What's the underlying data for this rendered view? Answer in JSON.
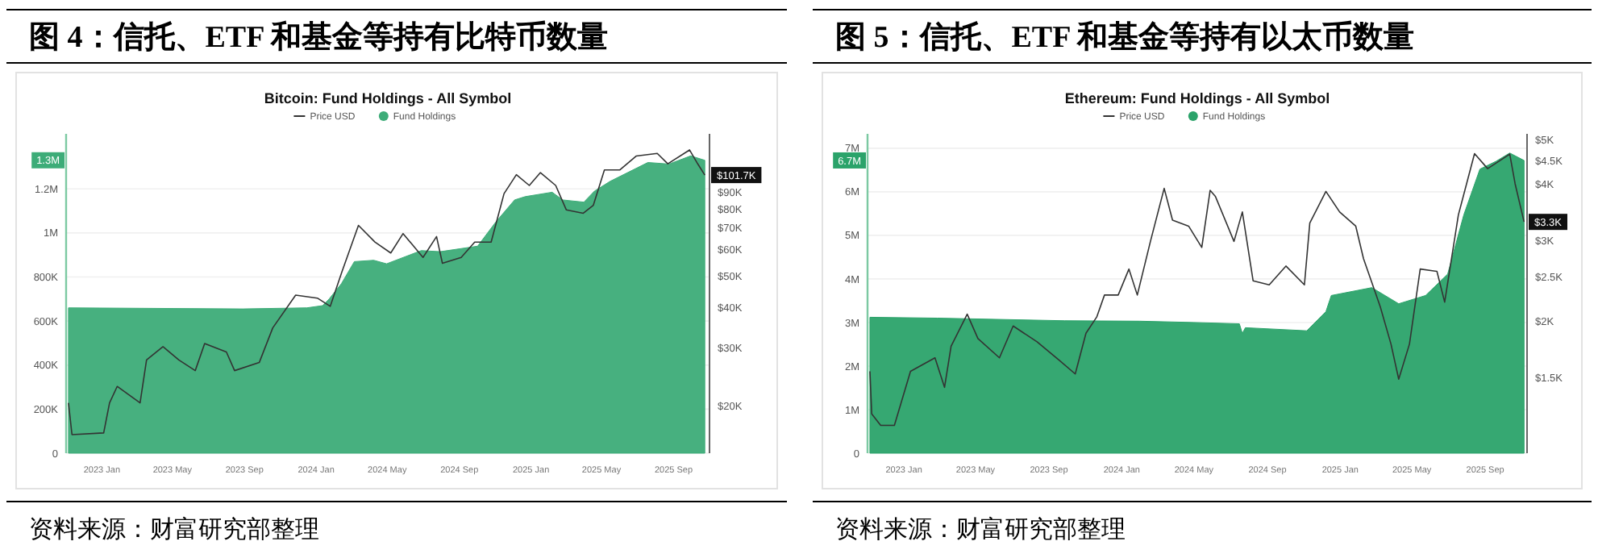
{
  "chart_data": [
    {
      "type": "area",
      "title": "图 4：信托、ETF 和基金等持有比特币数量",
      "subtitle": "Bitcoin: Fund Holdings - All Symbol",
      "legend": "top",
      "grid": "y",
      "log": "y2",
      "xlim": [
        "2022-11-01",
        "2025-11-01"
      ],
      "xticks": [
        {
          "value": "2023-01",
          "label": "2023 Jan"
        },
        {
          "value": "2023-05",
          "label": "2023 May"
        },
        {
          "value": "2023-09",
          "label": "2023 Sep"
        },
        {
          "value": "2024-01",
          "label": "2024 Jan"
        },
        {
          "value": "2024-05",
          "label": "2024 May"
        },
        {
          "value": "2024-09",
          "label": "2024 Sep"
        },
        {
          "value": "2025-01",
          "label": "2025 Jan"
        },
        {
          "value": "2025-05",
          "label": "2025 May"
        },
        {
          "value": "2025-09",
          "label": "2025 Sep"
        }
      ],
      "ylim": [
        0,
        1450000
      ],
      "yticks": [
        0,
        {
          "value": 200000,
          "label": "200K"
        },
        {
          "value": 400000,
          "label": "400K"
        },
        {
          "value": 600000,
          "label": "600K"
        },
        {
          "value": 800000,
          "label": "800K"
        },
        {
          "value": 1000000,
          "label": "1M"
        },
        {
          "value": 1200000,
          "label": "1.2M"
        }
      ],
      "y2lim": [
        14300,
        136000
      ],
      "y2ticks": [
        {
          "value": 20000,
          "label": "$20K"
        },
        {
          "value": 30000,
          "label": "$30K"
        },
        {
          "value": 40000,
          "label": "$40K"
        },
        {
          "value": 50000,
          "label": "$50K"
        },
        {
          "value": 60000,
          "label": "$60K"
        },
        {
          "value": 70000,
          "label": "$70K"
        },
        {
          "value": 80000,
          "label": "$80K"
        },
        {
          "value": 90000,
          "label": "$90K"
        }
      ],
      "series": [
        {
          "name": "Price USD",
          "type": "line",
          "axis": "y2",
          "color": "#333333",
          "x": [
            "2022-11-05",
            "2022-11-11",
            "2023-01-04",
            "2023-01-14",
            "2023-01-27",
            "2023-03-07",
            "2023-03-18",
            "2023-04-15",
            "2023-05-12",
            "2023-06-09",
            "2023-06-25",
            "2023-08-01",
            "2023-08-15",
            "2023-09-26",
            "2023-10-19",
            "2023-11-27",
            "2024-01-03",
            "2024-01-25",
            "2024-02-14",
            "2024-03-13",
            "2024-04-10",
            "2024-05-07",
            "2024-05-28",
            "2024-07-01",
            "2024-07-24",
            "2024-08-03",
            "2024-09-04",
            "2024-09-27",
            "2024-10-25",
            "2024-11-16",
            "2024-12-07",
            "2024-12-29",
            "2025-01-17",
            "2025-02-12",
            "2025-03-02",
            "2025-03-31",
            "2025-04-17",
            "2025-05-06",
            "2025-06-01",
            "2025-06-29",
            "2025-08-04",
            "2025-08-22",
            "2025-09-28",
            "2025-10-12",
            "2025-10-24"
          ],
          "values": [
            20400,
            16300,
            16500,
            20400,
            22900,
            20400,
            27600,
            30300,
            27600,
            25600,
            31000,
            29200,
            25600,
            27100,
            34600,
            43600,
            42700,
            40300,
            51500,
            71300,
            63400,
            58700,
            67300,
            56900,
            65900,
            54600,
            56900,
            63400,
            63400,
            89200,
            102000,
            94500,
            103500,
            94500,
            79600,
            77700,
            82100,
            105400,
            105400,
            116300,
            118500,
            110100,
            121400,
            110000,
            101700
          ]
        },
        {
          "name": "Fund Holdings",
          "color": "#3dac78",
          "x": [
            "2022-11-05",
            "2023-08-29",
            "2023-12-16",
            "2024-01-12",
            "2024-01-23",
            "2024-02-13",
            "2024-03-06",
            "2024-04-08",
            "2024-04-30",
            "2024-06-28",
            "2024-07-30",
            "2024-10-02",
            "2024-11-02",
            "2024-12-04",
            "2024-12-22",
            "2025-02-06",
            "2025-02-24",
            "2025-04-01",
            "2025-04-19",
            "2025-05-16",
            "2025-07-01",
            "2025-07-19",
            "2025-08-24",
            "2025-09-30",
            "2025-10-24"
          ],
          "values": [
            660000,
            655000,
            660000,
            670000,
            700000,
            770000,
            870000,
            876000,
            860000,
            920000,
            915000,
            940000,
            1050000,
            1150000,
            1165000,
            1185000,
            1150000,
            1140000,
            1190000,
            1235000,
            1296000,
            1320000,
            1313000,
            1350000,
            1330000
          ]
        }
      ],
      "annotations": [
        "1.3M",
        "$101.7K",
        "资料来源：财富研究部整理"
      ]
    },
    {
      "type": "area",
      "title": "图 5：信托、ETF 和基金等持有以太币数量",
      "subtitle": "Ethereum: Fund Holdings - All Symbol",
      "legend": "top",
      "grid": "y",
      "log": "y2",
      "xlim": [
        "2022-11-01",
        "2025-11-10"
      ],
      "xticks": [
        {
          "value": "2023-01",
          "label": "2023 Jan"
        },
        {
          "value": "2023-05",
          "label": "2023 May"
        },
        {
          "value": "2023-09",
          "label": "2023 Sep"
        },
        {
          "value": "2024-01",
          "label": "2024 Jan"
        },
        {
          "value": "2024-05",
          "label": "2024 May"
        },
        {
          "value": "2024-09",
          "label": "2024 Sep"
        },
        {
          "value": "2025-01",
          "label": "2025 Jan"
        },
        {
          "value": "2025-05",
          "label": "2025 May"
        },
        {
          "value": "2025-09",
          "label": "2025 Sep"
        }
      ],
      "ylim": [
        0,
        7330000
      ],
      "yticks": [
        0,
        {
          "value": 1000000,
          "label": "1M"
        },
        {
          "value": 2000000,
          "label": "2M"
        },
        {
          "value": 3000000,
          "label": "3M"
        },
        {
          "value": 4000000,
          "label": "4M"
        },
        {
          "value": 5000000,
          "label": "5M"
        },
        {
          "value": 6000000,
          "label": "6M"
        },
        {
          "value": 7000000,
          "label": "7M"
        }
      ],
      "y2lim": [
        1025,
        5150
      ],
      "y2ticks": [
        {
          "value": 1500,
          "label": "$1.5K"
        },
        {
          "value": 2000,
          "label": "$2K"
        },
        {
          "value": 2500,
          "label": "$2.5K"
        },
        {
          "value": 3000,
          "label": "$3K"
        },
        {
          "value": 4000,
          "label": "$4K"
        },
        {
          "value": 4500,
          "label": "$4.5K"
        },
        {
          "value": 5000,
          "label": "$5K"
        }
      ],
      "series": [
        {
          "name": "Price USD",
          "type": "line",
          "axis": "y2",
          "color": "#333333",
          "x": [
            "2022-11-05",
            "2022-11-08",
            "2022-11-23",
            "2022-12-16",
            "2023-01-12",
            "2023-02-22",
            "2023-03-10",
            "2023-03-21",
            "2023-04-17",
            "2023-05-05",
            "2023-06-10",
            "2023-07-03",
            "2023-08-12",
            "2023-09-18",
            "2023-10-15",
            "2023-11-02",
            "2023-11-20",
            "2023-12-03",
            "2023-12-26",
            "2024-01-13",
            "2024-01-27",
            "2024-02-18",
            "2024-03-12",
            "2024-03-26",
            "2024-04-22",
            "2024-05-14",
            "2024-05-28",
            "2024-06-06",
            "2024-07-07",
            "2024-07-21",
            "2024-08-08",
            "2024-09-04",
            "2024-10-02",
            "2024-11-02",
            "2024-11-11",
            "2024-12-08",
            "2024-12-31",
            "2025-01-27",
            "2025-02-09",
            "2025-03-09",
            "2025-03-27",
            "2025-04-09",
            "2025-04-27",
            "2025-05-15",
            "2025-06-12",
            "2025-06-25",
            "2025-07-18",
            "2025-08-14",
            "2025-09-05",
            "2025-10-12",
            "2025-10-21",
            "2025-11-05"
          ],
          "values": [
            1550,
            1250,
            1180,
            1180,
            1550,
            1660,
            1430,
            1760,
            2070,
            1830,
            1660,
            1950,
            1800,
            1640,
            1530,
            1880,
            2040,
            2280,
            2280,
            2600,
            2280,
            2990,
            3910,
            3330,
            3230,
            2900,
            3870,
            3750,
            2990,
            3470,
            2450,
            2400,
            2640,
            2400,
            3280,
            3850,
            3470,
            3230,
            2740,
            2150,
            1780,
            1490,
            1780,
            2600,
            2570,
            2200,
            3420,
            4660,
            4320,
            4650,
            4000,
            3300
          ]
        },
        {
          "name": "Fund Holdings",
          "color": "#2ba36a",
          "x": [
            "2022-11-05",
            "2023-02-26",
            "2023-09-27",
            "2024-01-31",
            "2024-05-01",
            "2024-07-16",
            "2024-07-21",
            "2024-07-26",
            "2024-11-06",
            "2024-12-08",
            "2024-12-17",
            "2025-02-23",
            "2025-04-09",
            "2025-05-24",
            "2025-06-30",
            "2025-07-27",
            "2025-08-23",
            "2025-09-19",
            "2025-10-12",
            "2025-11-05"
          ],
          "values": [
            3120000,
            3100000,
            3040000,
            3030000,
            3000000,
            2970000,
            2750000,
            2880000,
            2810000,
            3250000,
            3620000,
            3800000,
            3430000,
            3620000,
            4110000,
            5470000,
            6520000,
            6700000,
            6890000,
            6720000
          ]
        }
      ],
      "annotations": [
        "6.7M",
        "$3.3K",
        "资料来源：财富研究部整理"
      ]
    }
  ]
}
